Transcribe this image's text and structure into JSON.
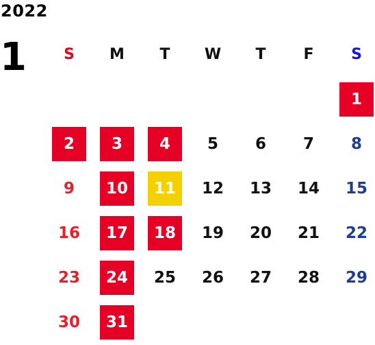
{
  "calendar": {
    "year": "2022",
    "month": "1",
    "weekdays": [
      "S",
      "M",
      "T",
      "W",
      "T",
      "F",
      "S"
    ],
    "weeks": [
      [
        {
          "day": "",
          "type": "empty"
        },
        {
          "day": "",
          "type": "empty"
        },
        {
          "day": "",
          "type": "empty"
        },
        {
          "day": "",
          "type": "empty"
        },
        {
          "day": "",
          "type": "empty"
        },
        {
          "day": "",
          "type": "empty"
        },
        {
          "day": "1",
          "type": "holiday"
        }
      ],
      [
        {
          "day": "2",
          "type": "holiday"
        },
        {
          "day": "3",
          "type": "holiday"
        },
        {
          "day": "4",
          "type": "holiday"
        },
        {
          "day": "5",
          "type": "normal"
        },
        {
          "day": "6",
          "type": "normal"
        },
        {
          "day": "7",
          "type": "normal"
        },
        {
          "day": "8",
          "type": "normal"
        }
      ],
      [
        {
          "day": "9",
          "type": "normal"
        },
        {
          "day": "10",
          "type": "holiday"
        },
        {
          "day": "11",
          "type": "today"
        },
        {
          "day": "12",
          "type": "normal"
        },
        {
          "day": "13",
          "type": "normal"
        },
        {
          "day": "14",
          "type": "normal"
        },
        {
          "day": "15",
          "type": "normal"
        }
      ],
      [
        {
          "day": "16",
          "type": "normal"
        },
        {
          "day": "17",
          "type": "holiday"
        },
        {
          "day": "18",
          "type": "holiday"
        },
        {
          "day": "19",
          "type": "normal"
        },
        {
          "day": "20",
          "type": "normal"
        },
        {
          "day": "21",
          "type": "normal"
        },
        {
          "day": "22",
          "type": "normal"
        }
      ],
      [
        {
          "day": "23",
          "type": "normal"
        },
        {
          "day": "24",
          "type": "holiday"
        },
        {
          "day": "25",
          "type": "normal"
        },
        {
          "day": "26",
          "type": "normal"
        },
        {
          "day": "27",
          "type": "normal"
        },
        {
          "day": "28",
          "type": "normal"
        },
        {
          "day": "29",
          "type": "normal"
        }
      ],
      [
        {
          "day": "30",
          "type": "normal"
        },
        {
          "day": "31",
          "type": "holiday"
        },
        {
          "day": "",
          "type": "empty"
        },
        {
          "day": "",
          "type": "empty"
        },
        {
          "day": "",
          "type": "empty"
        },
        {
          "day": "",
          "type": "empty"
        },
        {
          "day": "",
          "type": "empty"
        }
      ]
    ]
  },
  "colors": {
    "holiday_bg": "#e60026",
    "today_bg": "#f5d000",
    "sunday_text": "#e32129",
    "saturday_text": "#1c3f94"
  }
}
